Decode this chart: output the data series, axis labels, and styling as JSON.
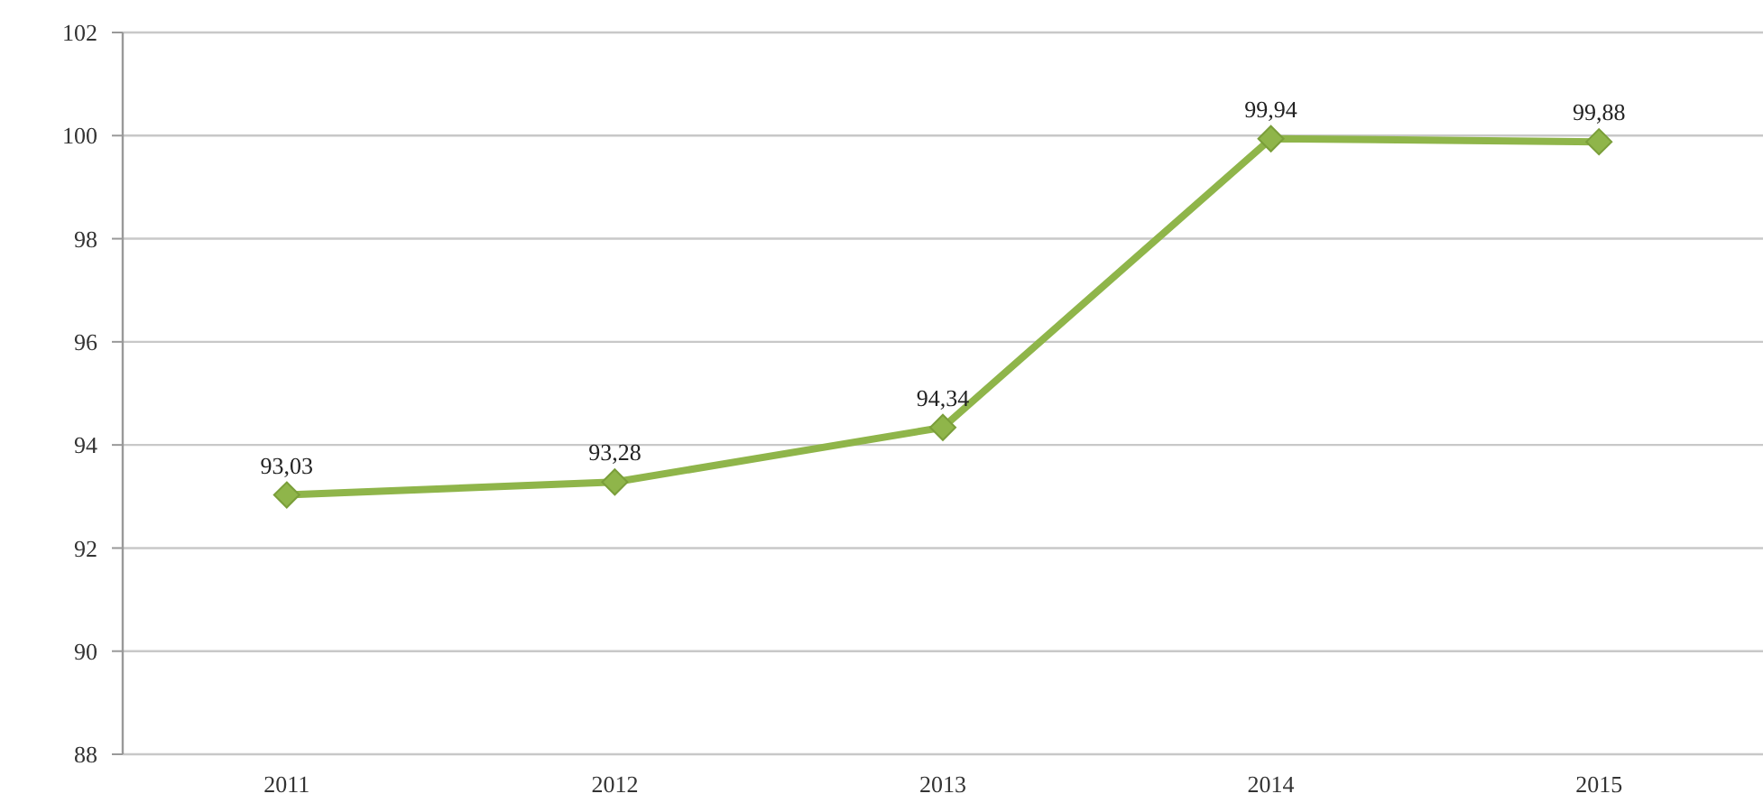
{
  "chart_data": {
    "type": "line",
    "categories": [
      "2011",
      "2012",
      "2013",
      "2014",
      "2015"
    ],
    "series": [
      {
        "color": "#8fb54a",
        "values": [
          93.03,
          93.28,
          94.34,
          99.94,
          99.88
        ],
        "value_labels": [
          "93,03",
          "93,28",
          "94,34",
          "99,94",
          "99,88"
        ]
      }
    ],
    "ylim": [
      88,
      102
    ],
    "yticks": [
      88,
      90,
      92,
      94,
      96,
      98,
      100,
      102
    ],
    "grid": "y",
    "marker": "diamond",
    "line_style": "solid"
  }
}
